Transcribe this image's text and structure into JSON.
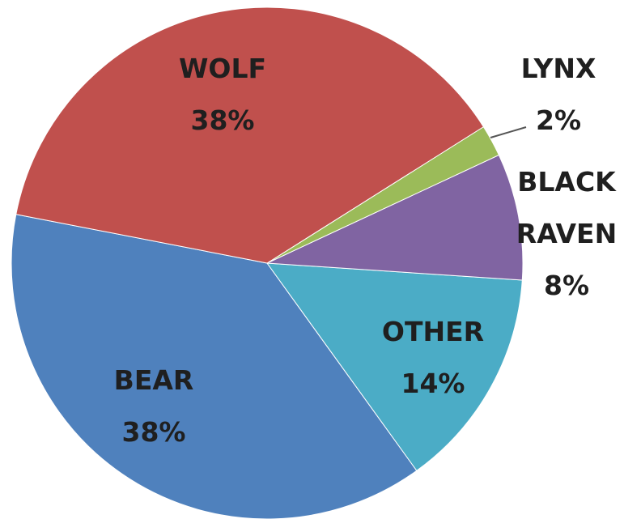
{
  "chart_data": {
    "type": "pie",
    "categories": [
      "WOLF",
      "LYNX",
      "BLACK RAVEN",
      "OTHER",
      "BEAR"
    ],
    "values": [
      38,
      2,
      8,
      14,
      38
    ],
    "value_labels": [
      "38%",
      "2%",
      "8%",
      "14%",
      "38%"
    ],
    "colors": [
      "#c0504d",
      "#9bbb59",
      "#8064a2",
      "#4bacc6",
      "#4f81bd"
    ]
  }
}
